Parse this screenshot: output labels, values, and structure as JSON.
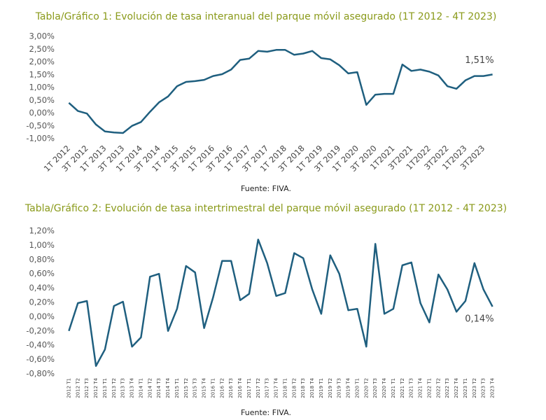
{
  "chart_data": [
    {
      "type": "line",
      "title": "Tabla/Gráfico 1: Evolución de tasa interanual del parque móvil asegurado (1T 2012 - 4T 2023)",
      "source": "Fuente: FIVA.",
      "categories": [
        "1T 2012",
        null,
        "3T 2012",
        null,
        "1T 2013",
        null,
        "3T 2013",
        null,
        "1T 2014",
        null,
        "3T 2014",
        null,
        "1T 2015",
        null,
        "3T 2015",
        null,
        "1T 2016",
        null,
        "3T 2016",
        null,
        "1T 2017",
        null,
        "3T 2017",
        null,
        "1T 2018",
        null,
        "3T 2018",
        null,
        "1T 2019",
        null,
        "3T 2019",
        null,
        "1T 2020",
        null,
        "3T 2020",
        null,
        "1T2021",
        null,
        "3T2021",
        null,
        "1T2022",
        null,
        "3T2022",
        null,
        "1T2023",
        null,
        "3T2023",
        null
      ],
      "series": [
        {
          "color": "#1f5f7f",
          "values": [
            0.4,
            0.08,
            -0.02,
            -0.45,
            -0.72,
            -0.76,
            -0.78,
            -0.5,
            -0.35,
            0.05,
            0.42,
            0.65,
            1.05,
            1.22,
            1.25,
            1.3,
            1.45,
            1.52,
            1.7,
            2.08,
            2.13,
            2.43,
            2.4,
            2.47,
            2.47,
            2.28,
            2.33,
            2.43,
            2.15,
            2.1,
            1.87,
            1.55,
            1.6,
            0.32,
            0.72,
            0.75,
            0.75,
            1.9,
            1.65,
            1.7,
            1.62,
            1.47,
            1.05,
            0.95,
            1.28,
            1.45,
            1.45,
            1.51
          ],
          "value_labels": [
            null,
            null,
            null,
            null,
            null,
            null,
            null,
            null,
            null,
            null,
            null,
            null,
            null,
            null,
            null,
            null,
            null,
            null,
            null,
            null,
            null,
            null,
            null,
            null,
            null,
            null,
            null,
            null,
            null,
            null,
            null,
            null,
            null,
            null,
            null,
            null,
            null,
            null,
            null,
            null,
            null,
            null,
            null,
            null,
            null,
            null,
            null,
            "1,51%"
          ]
        }
      ],
      "ylim": [
        -1,
        3
      ],
      "yticks": [
        {
          "value": -1,
          "label": "-1,00%"
        },
        {
          "value": -0.5,
          "label": "-0,50%"
        },
        {
          "value": 0,
          "label": "0,00%"
        },
        {
          "value": 0.5,
          "label": "0,50%"
        },
        {
          "value": 1,
          "label": "1,00%"
        },
        {
          "value": 1.5,
          "label": "1,50%"
        },
        {
          "value": 2,
          "label": "2,00%"
        },
        {
          "value": 2.5,
          "label": "2,50%"
        },
        {
          "value": 3,
          "label": "3,00%"
        }
      ]
    },
    {
      "type": "line",
      "title": "Tabla/Gráfico 2: Evolución de tasa intertrimestral del parque móvil asegurado (1T 2012 - 4T 2023)",
      "source": "Fuente: FIVA.",
      "categories": [
        "2012 T1",
        "2012 T2",
        "2012 T3",
        "2012 T4",
        "2013 T1",
        "2013 T2",
        "2013 T3",
        "2013 T4",
        "2014 T1",
        "2014 T2",
        "2014 T3",
        "2014 T4",
        "2015 T1",
        "2015 T2",
        "2015 T3",
        "2015 T4",
        "2016 T1",
        "2016 T2",
        "2016 T3",
        "2016 T4",
        "2017 T1",
        "2017 T2",
        "2017 T3",
        "2017 T4",
        "2018 T1",
        "2018 T2",
        "2018 T3",
        "2018 T4",
        "2019 T1",
        "2019 T2",
        "2019 T3",
        "2019 T4",
        "2020 T1",
        "2020 T2",
        "2020 T3",
        "2020 T4",
        "2021 T1",
        "2021 T2",
        "2021 T3",
        "2021 T4",
        "2022 T1",
        "2022 T2",
        "2022 T3",
        "2022 T4",
        "2023 T1",
        "2023 T2",
        "2023 T3",
        "2023 T4"
      ],
      "series": [
        {
          "color": "#1f5f7f",
          "values": [
            -0.2,
            0.19,
            0.22,
            -0.69,
            -0.46,
            0.15,
            0.21,
            -0.42,
            -0.29,
            0.56,
            0.6,
            -0.2,
            0.11,
            0.71,
            0.62,
            -0.16,
            0.27,
            0.78,
            0.78,
            0.23,
            0.32,
            1.08,
            0.75,
            0.29,
            0.33,
            0.89,
            0.82,
            0.38,
            0.04,
            0.86,
            0.6,
            0.09,
            0.11,
            -0.42,
            1.02,
            0.04,
            0.11,
            0.72,
            0.76,
            0.19,
            -0.08,
            0.59,
            0.38,
            0.07,
            0.22,
            0.75,
            0.38,
            0.14
          ],
          "value_labels": [
            null,
            null,
            null,
            null,
            null,
            null,
            null,
            null,
            null,
            null,
            null,
            null,
            null,
            null,
            null,
            null,
            null,
            null,
            null,
            null,
            null,
            null,
            null,
            null,
            null,
            null,
            null,
            null,
            null,
            null,
            null,
            null,
            null,
            null,
            null,
            null,
            null,
            null,
            null,
            null,
            null,
            null,
            null,
            null,
            null,
            null,
            null,
            "0,14%"
          ]
        }
      ],
      "ylim": [
        -0.8,
        1.2
      ],
      "yticks": [
        {
          "value": -0.8,
          "label": "-0,80%"
        },
        {
          "value": -0.6,
          "label": "-0,60%"
        },
        {
          "value": -0.4,
          "label": "-0,40%"
        },
        {
          "value": -0.2,
          "label": "-0,20%"
        },
        {
          "value": 0,
          "label": "0,00%"
        },
        {
          "value": 0.2,
          "label": "0,20%"
        },
        {
          "value": 0.4,
          "label": "0,40%"
        },
        {
          "value": 0.6,
          "label": "0,60%"
        },
        {
          "value": 0.8,
          "label": "0,80%"
        },
        {
          "value": 1,
          "label": "1,00%"
        },
        {
          "value": 1.2,
          "label": "1,20%"
        }
      ]
    }
  ]
}
